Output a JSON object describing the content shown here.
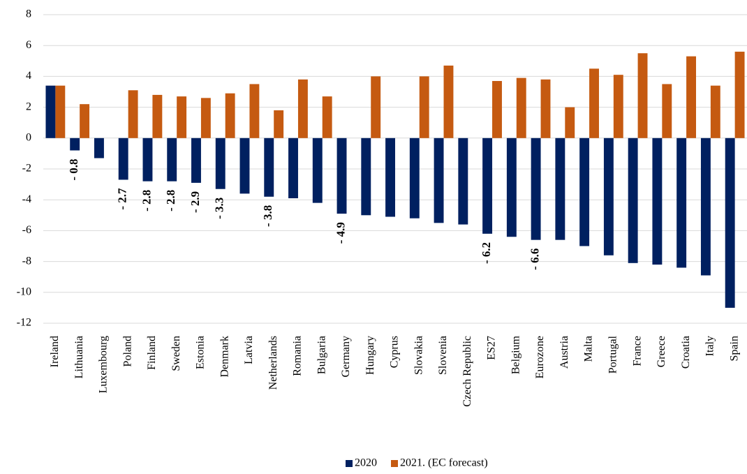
{
  "chart_data": {
    "type": "bar",
    "categories": [
      "Ireland",
      "Lithuania",
      "Luxembourg",
      "Poland",
      "Finland",
      "Sweden",
      "Estonia",
      "Denmark",
      "Latvia",
      "Netherlands",
      "Romania",
      "Bulgaria",
      "Germany",
      "Hungary",
      "Cyprus",
      "Slovakia",
      "Slovenia",
      "Czech Republic",
      "ES27",
      "Belgium",
      "Eurozone",
      "Austria",
      "Malta",
      "Portugal",
      "France",
      "Greece",
      "Croatia",
      "Italy",
      "Spain"
    ],
    "series": [
      {
        "name": "2020",
        "color": "#002060",
        "values": [
          3.4,
          -0.8,
          -1.3,
          -2.7,
          -2.8,
          -2.8,
          -2.9,
          -3.3,
          -3.6,
          -3.8,
          -3.9,
          -4.2,
          -4.9,
          -5.0,
          -5.1,
          -5.2,
          -5.5,
          -5.6,
          -6.2,
          -6.4,
          -6.6,
          -6.6,
          -7.0,
          -7.6,
          -8.1,
          -8.2,
          -8.4,
          -8.9,
          -11.0
        ],
        "value_labels": [
          null,
          "- 0.8",
          null,
          "- 2.7",
          "- 2.8",
          "- 2.8",
          "- 2.9",
          "- 3.3",
          null,
          "- 3.8",
          null,
          null,
          "- 4.9",
          null,
          null,
          null,
          null,
          null,
          "- 6.2",
          null,
          "- 6.6",
          null,
          null,
          null,
          null,
          null,
          null,
          null,
          null
        ]
      },
      {
        "name": "2021. (EC forecast)",
        "color": "#c55a11",
        "values": [
          3.4,
          2.2,
          null,
          3.1,
          2.8,
          2.7,
          2.6,
          2.9,
          3.5,
          1.8,
          3.8,
          2.7,
          null,
          4.0,
          null,
          4.0,
          4.7,
          null,
          3.7,
          3.9,
          3.8,
          2.0,
          4.5,
          4.1,
          5.5,
          3.5,
          5.3,
          3.4,
          5.6
        ]
      }
    ],
    "ylim": [
      -12,
      8
    ],
    "yticks": [
      -12,
      -10,
      -8,
      -6,
      -4,
      -2,
      0,
      2,
      4,
      6,
      8
    ],
    "grid": true,
    "legend": "bottom"
  }
}
